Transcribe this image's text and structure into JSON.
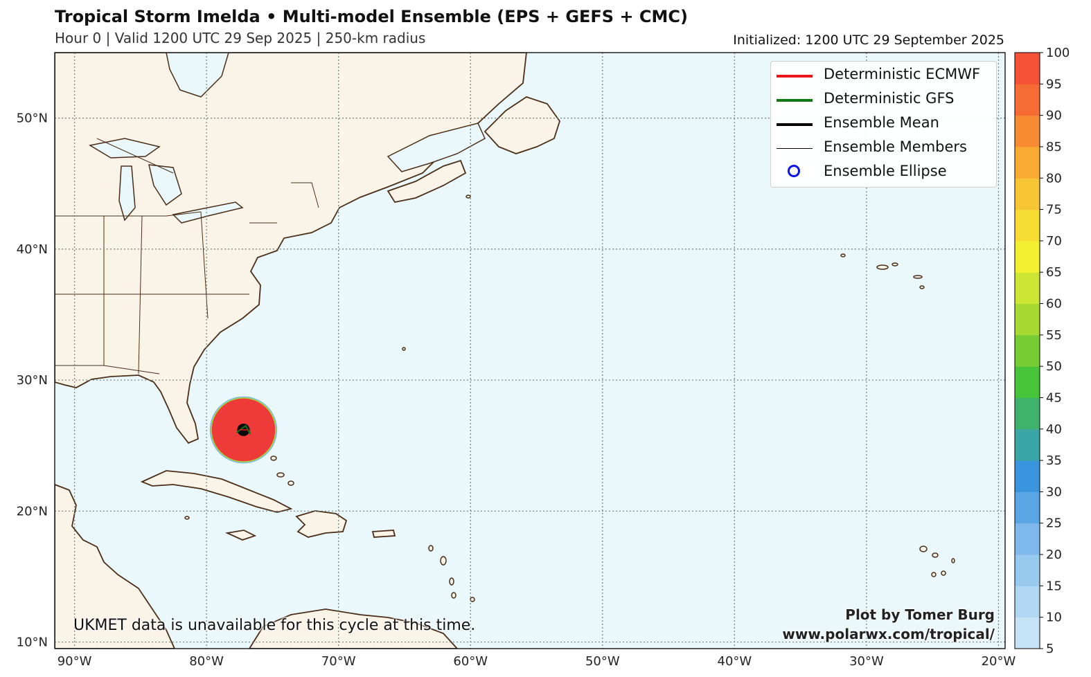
{
  "header": {
    "title": "Tropical Storm Imelda • Multi-model Ensemble (EPS + GEFS + CMC)",
    "subtitle": "Hour 0 | Valid 1200 UTC 29 Sep 2025 | 250-km radius",
    "initialized": "Initialized: 1200 UTC 29 September 2025"
  },
  "map": {
    "lon_range": [
      -91.5,
      -19.5
    ],
    "lat_range": [
      9.5,
      55
    ],
    "lat_ticks": [
      {
        "v": 10,
        "label": "10°N"
      },
      {
        "v": 20,
        "label": "20°N"
      },
      {
        "v": 30,
        "label": "30°N"
      },
      {
        "v": 40,
        "label": "40°N"
      },
      {
        "v": 50,
        "label": "50°N"
      }
    ],
    "lon_ticks": [
      {
        "v": -90,
        "label": "90°W"
      },
      {
        "v": -80,
        "label": "80°W"
      },
      {
        "v": -70,
        "label": "70°W"
      },
      {
        "v": -60,
        "label": "60°W"
      },
      {
        "v": -50,
        "label": "50°W"
      },
      {
        "v": -40,
        "label": "40°W"
      },
      {
        "v": -30,
        "label": "30°W"
      },
      {
        "v": -20,
        "label": "20°W"
      }
    ],
    "storm_center": {
      "lon": -77.2,
      "lat": 26.2
    },
    "probability_radius_deg": 2.4,
    "colors": {
      "ocean": "#eaf8fc",
      "land": "#faf3e8",
      "coast": "#4a2d16",
      "grid": "#6e7f78",
      "prob_max": "#ef3a3a"
    }
  },
  "legend": [
    {
      "label": "Deterministic ECMWF",
      "color": "#e8151b",
      "style": "thick"
    },
    {
      "label": "Deterministic GFS",
      "color": "#0e7a12",
      "style": "thick"
    },
    {
      "label": "Ensemble Mean",
      "color": "#000000",
      "style": "thick"
    },
    {
      "label": "Ensemble Members",
      "color": "#000000",
      "style": "thin"
    },
    {
      "label": "Ensemble Ellipse",
      "color": "#0a12e6",
      "style": "circle"
    }
  ],
  "colorbar": {
    "ticks": [
      "5",
      "10",
      "15",
      "20",
      "25",
      "30",
      "35",
      "40",
      "45",
      "50",
      "55",
      "60",
      "65",
      "70",
      "75",
      "80",
      "85",
      "90",
      "95",
      "100"
    ],
    "colors": [
      "#c6e3f5",
      "#b0d6f1",
      "#98c9ee",
      "#7fb8eb",
      "#5aa6e4",
      "#3b95de",
      "#3aa6a6",
      "#3fb36b",
      "#47c43a",
      "#78cc33",
      "#a6d931",
      "#cde633",
      "#f2f031",
      "#f7dc34",
      "#f8c536",
      "#f8ab33",
      "#f78c33",
      "#f76b35",
      "#f55237",
      "#ef3a3a"
    ]
  },
  "credits": {
    "line1": "Plot by Tomer Burg",
    "line2": "www.polarwx.com/tropical/"
  },
  "notice": "UKMET data is unavailable for this cycle at this time."
}
